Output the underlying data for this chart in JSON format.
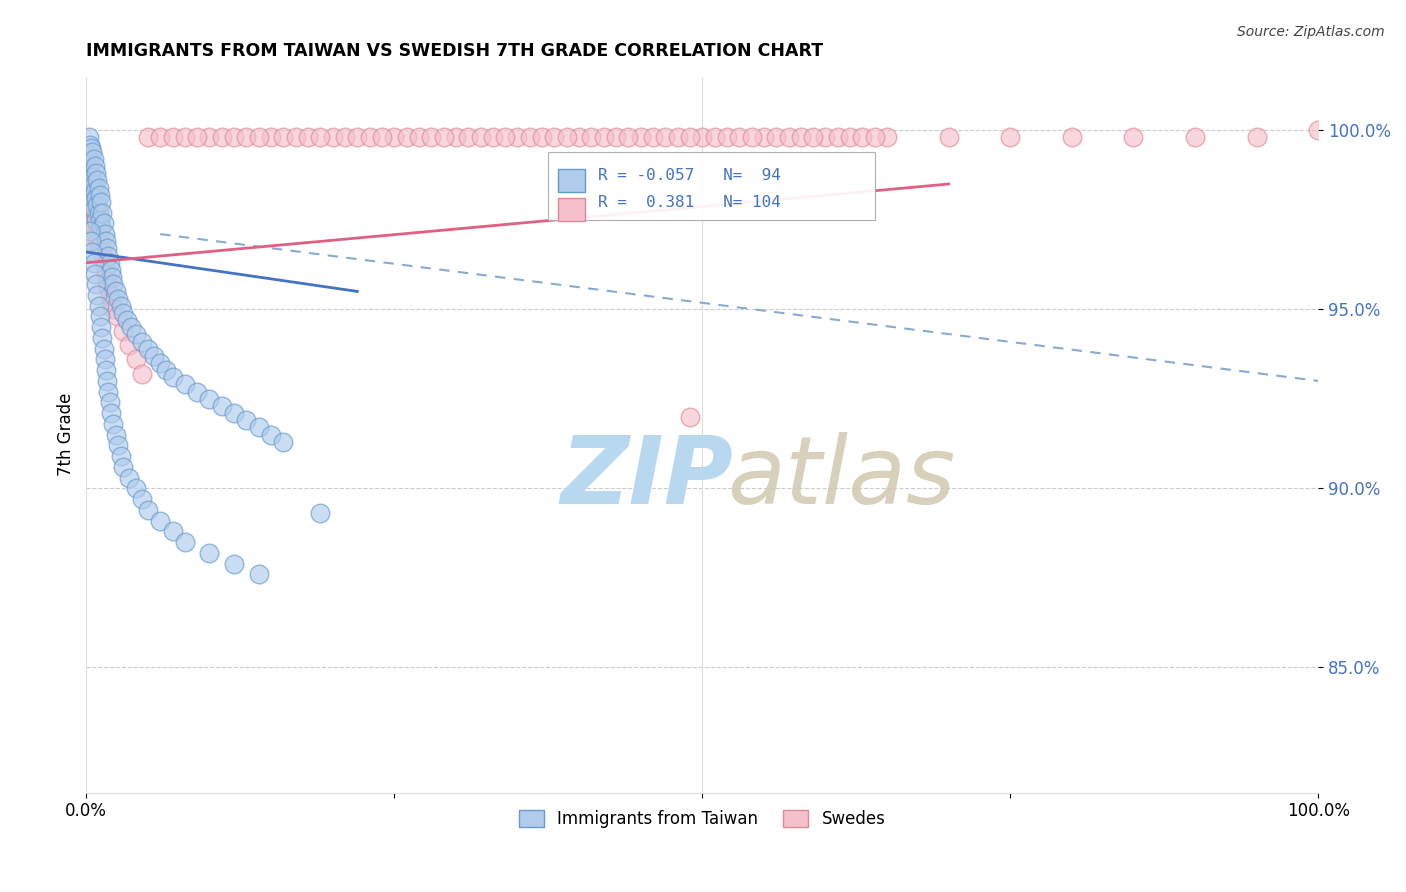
{
  "title": "IMMIGRANTS FROM TAIWAN VS SWEDISH 7TH GRADE CORRELATION CHART",
  "source": "Source: ZipAtlas.com",
  "ylabel": "7th Grade",
  "yticks": [
    "100.0%",
    "95.0%",
    "90.0%",
    "85.0%"
  ],
  "ytick_vals": [
    1.0,
    0.95,
    0.9,
    0.85
  ],
  "xlim": [
    0.0,
    1.0
  ],
  "ylim": [
    0.815,
    1.015
  ],
  "legend_items": [
    {
      "label": "Immigrants from Taiwan",
      "color": "#a8c4e0"
    },
    {
      "label": "Swedes",
      "color": "#f4b8c8"
    }
  ],
  "corr_box": {
    "blue_r": "-0.057",
    "blue_n": "94",
    "pink_r": "0.381",
    "pink_n": "104"
  },
  "blue_scatter_x": [
    0.001,
    0.002,
    0.002,
    0.003,
    0.003,
    0.003,
    0.004,
    0.004,
    0.004,
    0.005,
    0.005,
    0.005,
    0.006,
    0.006,
    0.006,
    0.007,
    0.007,
    0.008,
    0.008,
    0.008,
    0.009,
    0.009,
    0.01,
    0.01,
    0.011,
    0.011,
    0.012,
    0.012,
    0.013,
    0.014,
    0.015,
    0.016,
    0.017,
    0.018,
    0.019,
    0.02,
    0.021,
    0.022,
    0.024,
    0.026,
    0.028,
    0.03,
    0.033,
    0.036,
    0.04,
    0.045,
    0.05,
    0.055,
    0.06,
    0.065,
    0.07,
    0.08,
    0.09,
    0.1,
    0.11,
    0.12,
    0.13,
    0.14,
    0.15,
    0.16,
    0.003,
    0.004,
    0.005,
    0.006,
    0.007,
    0.008,
    0.009,
    0.01,
    0.011,
    0.012,
    0.013,
    0.014,
    0.015,
    0.016,
    0.017,
    0.018,
    0.019,
    0.02,
    0.022,
    0.024,
    0.026,
    0.028,
    0.03,
    0.035,
    0.04,
    0.045,
    0.05,
    0.06,
    0.07,
    0.08,
    0.1,
    0.12,
    0.14,
    0.19
  ],
  "blue_scatter_y": [
    0.99,
    0.998,
    0.993,
    0.996,
    0.991,
    0.985,
    0.995,
    0.988,
    0.982,
    0.994,
    0.987,
    0.98,
    0.992,
    0.985,
    0.978,
    0.99,
    0.983,
    0.988,
    0.981,
    0.975,
    0.986,
    0.979,
    0.984,
    0.977,
    0.982,
    0.975,
    0.98,
    0.973,
    0.977,
    0.974,
    0.971,
    0.969,
    0.967,
    0.965,
    0.963,
    0.961,
    0.959,
    0.957,
    0.955,
    0.953,
    0.951,
    0.949,
    0.947,
    0.945,
    0.943,
    0.941,
    0.939,
    0.937,
    0.935,
    0.933,
    0.931,
    0.929,
    0.927,
    0.925,
    0.923,
    0.921,
    0.919,
    0.917,
    0.915,
    0.913,
    0.972,
    0.969,
    0.966,
    0.963,
    0.96,
    0.957,
    0.954,
    0.951,
    0.948,
    0.945,
    0.942,
    0.939,
    0.936,
    0.933,
    0.93,
    0.927,
    0.924,
    0.921,
    0.918,
    0.915,
    0.912,
    0.909,
    0.906,
    0.903,
    0.9,
    0.897,
    0.894,
    0.891,
    0.888,
    0.885,
    0.882,
    0.879,
    0.876,
    0.893
  ],
  "pink_scatter_x": [
    0.001,
    0.002,
    0.002,
    0.003,
    0.003,
    0.004,
    0.004,
    0.005,
    0.005,
    0.006,
    0.006,
    0.007,
    0.007,
    0.008,
    0.008,
    0.009,
    0.009,
    0.01,
    0.01,
    0.011,
    0.012,
    0.013,
    0.014,
    0.015,
    0.016,
    0.017,
    0.018,
    0.019,
    0.02,
    0.022,
    0.05,
    0.1,
    0.15,
    0.2,
    0.25,
    0.3,
    0.35,
    0.4,
    0.45,
    0.5,
    0.55,
    0.6,
    0.65,
    0.7,
    0.75,
    0.8,
    0.85,
    0.9,
    0.95,
    1.0,
    0.06,
    0.07,
    0.08,
    0.09,
    0.11,
    0.12,
    0.13,
    0.14,
    0.16,
    0.17,
    0.18,
    0.19,
    0.21,
    0.22,
    0.23,
    0.24,
    0.26,
    0.27,
    0.28,
    0.29,
    0.31,
    0.32,
    0.33,
    0.34,
    0.36,
    0.37,
    0.38,
    0.39,
    0.41,
    0.42,
    0.43,
    0.44,
    0.46,
    0.47,
    0.48,
    0.49,
    0.51,
    0.52,
    0.53,
    0.54,
    0.56,
    0.57,
    0.58,
    0.59,
    0.61,
    0.62,
    0.63,
    0.64,
    0.025,
    0.03,
    0.035,
    0.04,
    0.045,
    0.49
  ],
  "pink_scatter_y": [
    0.985,
    0.988,
    0.983,
    0.986,
    0.981,
    0.984,
    0.979,
    0.982,
    0.977,
    0.98,
    0.975,
    0.978,
    0.973,
    0.976,
    0.971,
    0.974,
    0.969,
    0.972,
    0.967,
    0.97,
    0.968,
    0.966,
    0.964,
    0.962,
    0.96,
    0.958,
    0.956,
    0.954,
    0.952,
    0.95,
    0.998,
    0.998,
    0.998,
    0.998,
    0.998,
    0.998,
    0.998,
    0.998,
    0.998,
    0.998,
    0.998,
    0.998,
    0.998,
    0.998,
    0.998,
    0.998,
    0.998,
    0.998,
    0.998,
    1.0,
    0.998,
    0.998,
    0.998,
    0.998,
    0.998,
    0.998,
    0.998,
    0.998,
    0.998,
    0.998,
    0.998,
    0.998,
    0.998,
    0.998,
    0.998,
    0.998,
    0.998,
    0.998,
    0.998,
    0.998,
    0.998,
    0.998,
    0.998,
    0.998,
    0.998,
    0.998,
    0.998,
    0.998,
    0.998,
    0.998,
    0.998,
    0.998,
    0.998,
    0.998,
    0.998,
    0.998,
    0.998,
    0.998,
    0.998,
    0.998,
    0.998,
    0.998,
    0.998,
    0.998,
    0.998,
    0.998,
    0.998,
    0.998,
    0.948,
    0.944,
    0.94,
    0.936,
    0.932,
    0.92
  ],
  "blue_solid_line": {
    "x0": 0.0,
    "x1": 0.22,
    "y0": 0.966,
    "y1": 0.955
  },
  "pink_solid_line": {
    "x0": 0.0,
    "x1": 0.7,
    "y0": 0.963,
    "y1": 0.985
  },
  "blue_dashed_line": {
    "x0": 0.06,
    "x1": 1.0,
    "y0": 0.971,
    "y1": 0.93
  },
  "watermark_zip": "ZIP",
  "watermark_atlas": "atlas",
  "watermark_color": "#cce3f5",
  "background_color": "#ffffff"
}
